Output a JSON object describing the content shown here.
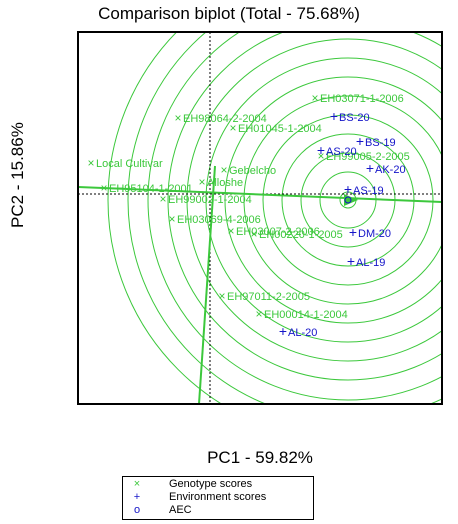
{
  "colors": {
    "genotype": "#3cc83c",
    "environment": "#1414c8",
    "circle": "#3cc83c",
    "axis": "#000000",
    "guide": "#000000"
  },
  "chart_data": {
    "type": "scatter",
    "title": "Comparison biplot (Total - 75.68%)",
    "xlabel": "PC1 - 59.82%",
    "ylabel": "PC2 - 15.86%",
    "xlim": [
      0,
      364
    ],
    "ylim": [
      0,
      372
    ],
    "genotypes": [
      {
        "name": "EH03071-1-2006",
        "x": 237,
        "y": 306
      },
      {
        "name": "EH98064-2-2004",
        "x": 100,
        "y": 286
      },
      {
        "name": "EH01045-1-2004",
        "x": 155,
        "y": 276
      },
      {
        "name": "Local Cultivar",
        "x": 13,
        "y": 241
      },
      {
        "name": "Gebelcho",
        "x": 146,
        "y": 234
      },
      {
        "name": "Alloshe",
        "x": 124,
        "y": 222
      },
      {
        "name": "EH95104-1-2001",
        "x": 26,
        "y": 216
      },
      {
        "name": "EH99002-1-2004",
        "x": 85,
        "y": 205
      },
      {
        "name": "EH03069-4-2006",
        "x": 94,
        "y": 185
      },
      {
        "name": "EH03007-2-2006",
        "x": 153,
        "y": 173
      },
      {
        "name": "EH00220-1-2005",
        "x": 176,
        "y": 170
      },
      {
        "name": "EH99005-2-2005",
        "x": 243,
        "y": 248
      },
      {
        "name": "EH97011-2-2005",
        "x": 144,
        "y": 108
      },
      {
        "name": "EH00014-1-2004",
        "x": 181,
        "y": 90
      }
    ],
    "environments": [
      {
        "name": "BS-20",
        "x": 256,
        "y": 287
      },
      {
        "name": "BS-19",
        "x": 282,
        "y": 262
      },
      {
        "name": "AS-20",
        "x": 243,
        "y": 253
      },
      {
        "name": "AK-20",
        "x": 292,
        "y": 235
      },
      {
        "name": "AS-19",
        "x": 270,
        "y": 214
      },
      {
        "name": "DM-20",
        "x": 275,
        "y": 171
      },
      {
        "name": "AL-19",
        "x": 273,
        "y": 142
      },
      {
        "name": "AL-20",
        "x": 205,
        "y": 72
      }
    ],
    "aec_center": {
      "x": 270,
      "y": 204
    },
    "circle_radii": [
      8,
      28,
      47,
      66,
      85,
      104,
      123,
      142,
      161,
      180,
      200,
      220,
      240
    ],
    "legend": {
      "entries": [
        {
          "label": "Genotype scores",
          "marker": "×",
          "series": "genotype"
        },
        {
          "label": "Environment scores",
          "marker": "+",
          "series": "environment"
        },
        {
          "label": "AEC",
          "marker": "o",
          "series": "environment"
        }
      ],
      "placement": "bottom"
    }
  }
}
